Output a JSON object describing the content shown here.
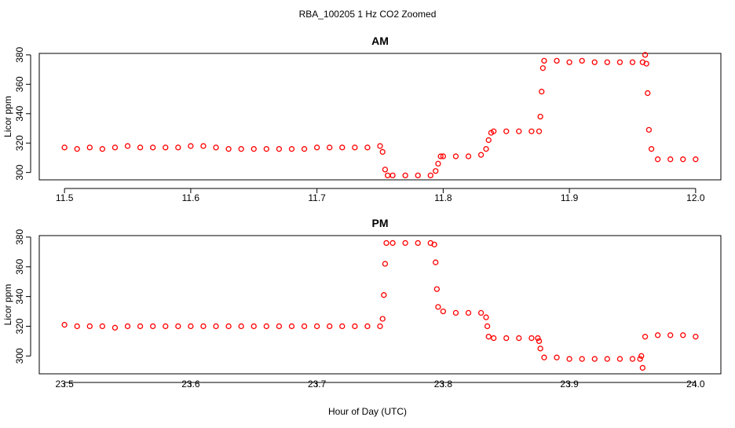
{
  "figure": {
    "title": "RBA_100205  1 Hz CO2 Zoomed",
    "xlabel": "Hour of Day (UTC)"
  },
  "chart_data": [
    {
      "type": "scatter",
      "title": "AM",
      "xlabel": "",
      "ylabel": "Licor ppm",
      "xlim": [
        11.48,
        12.02
      ],
      "ylim": [
        295,
        381
      ],
      "xticks": [
        11.5,
        11.6,
        11.7,
        11.8,
        11.9,
        12.0
      ],
      "xtick_labels": [
        "11.5",
        "11.6",
        "11.7",
        "11.8",
        "11.9",
        "12.0"
      ],
      "yticks": [
        300,
        320,
        340,
        360,
        380
      ],
      "ytick_labels": [
        "300",
        "320",
        "340",
        "360",
        "380"
      ],
      "marker": "open-circle",
      "color": "#ff0000",
      "series": [
        {
          "x": [
            11.5,
            11.51,
            11.52,
            11.53,
            11.54,
            11.55,
            11.56,
            11.57,
            11.58,
            11.59,
            11.6,
            11.61,
            11.62,
            11.63,
            11.64,
            11.65,
            11.66,
            11.67,
            11.68,
            11.69,
            11.7,
            11.71,
            11.72,
            11.73,
            11.74,
            11.75,
            11.752,
            11.754,
            11.756,
            11.76,
            11.77,
            11.78,
            11.79,
            11.794,
            11.796,
            11.798,
            11.8,
            11.81,
            11.82,
            11.83,
            11.834,
            11.836,
            11.838,
            11.84,
            11.85,
            11.86,
            11.87,
            11.876,
            11.877,
            11.878,
            11.879,
            11.88,
            11.89,
            11.9,
            11.91,
            11.92,
            11.93,
            11.94,
            11.95,
            11.958,
            11.96,
            11.961,
            11.962,
            11.963,
            11.965,
            11.97,
            11.98,
            11.99,
            12.0
          ],
          "y": [
            317,
            316,
            317,
            316,
            317,
            318,
            317,
            317,
            317,
            317,
            318,
            318,
            317,
            316,
            316,
            316,
            316,
            316,
            316,
            316,
            317,
            317,
            317,
            317,
            317,
            318,
            314,
            302,
            298,
            298,
            298,
            298,
            298,
            301,
            306,
            311,
            311,
            311,
            311,
            312,
            316,
            322,
            327,
            328,
            328,
            328,
            328,
            328,
            338,
            355,
            371,
            376,
            376,
            375,
            376,
            375,
            375,
            375,
            375,
            375,
            380,
            374,
            354,
            329,
            316,
            309,
            309,
            309,
            309
          ]
        }
      ]
    },
    {
      "type": "scatter",
      "title": "PM",
      "xlabel": "",
      "ylabel": "Licor ppm",
      "xlim": [
        23.48,
        24.02
      ],
      "ylim": [
        288,
        381
      ],
      "xticks": [
        23.5,
        23.6,
        23.7,
        23.8,
        23.9,
        24.0
      ],
      "xtick_labels": [
        "23.5",
        "23.6",
        "23.7",
        "23.8",
        "23.9",
        "24.0"
      ],
      "yticks": [
        300,
        320,
        340,
        360,
        380
      ],
      "ytick_labels": [
        "300",
        "320",
        "340",
        "360",
        "380"
      ],
      "marker": "open-circle",
      "color": "#ff0000",
      "series": [
        {
          "x": [
            23.5,
            23.51,
            23.52,
            23.53,
            23.54,
            23.55,
            23.56,
            23.57,
            23.58,
            23.59,
            23.6,
            23.61,
            23.62,
            23.63,
            23.64,
            23.65,
            23.66,
            23.67,
            23.68,
            23.69,
            23.7,
            23.71,
            23.72,
            23.73,
            23.74,
            23.75,
            23.752,
            23.753,
            23.754,
            23.755,
            23.76,
            23.77,
            23.78,
            23.79,
            23.793,
            23.794,
            23.795,
            23.796,
            23.8,
            23.81,
            23.82,
            23.83,
            23.834,
            23.835,
            23.836,
            23.84,
            23.85,
            23.86,
            23.87,
            23.875,
            23.876,
            23.877,
            23.88,
            23.89,
            23.9,
            23.91,
            23.92,
            23.93,
            23.94,
            23.95,
            23.956,
            23.957,
            23.958,
            23.96,
            23.97,
            23.98,
            23.99,
            24.0
          ],
          "y": [
            321,
            320,
            320,
            320,
            319,
            320,
            320,
            320,
            320,
            320,
            320,
            320,
            320,
            320,
            320,
            320,
            320,
            320,
            320,
            320,
            320,
            320,
            320,
            320,
            320,
            320,
            325,
            341,
            362,
            376,
            376,
            376,
            376,
            376,
            375,
            363,
            345,
            333,
            330,
            329,
            329,
            329,
            326,
            320,
            313,
            312,
            312,
            312,
            312,
            312,
            310,
            305,
            299,
            299,
            298,
            298,
            298,
            298,
            298,
            298,
            298,
            300,
            292,
            313,
            314,
            314,
            314,
            313
          ]
        }
      ]
    }
  ]
}
